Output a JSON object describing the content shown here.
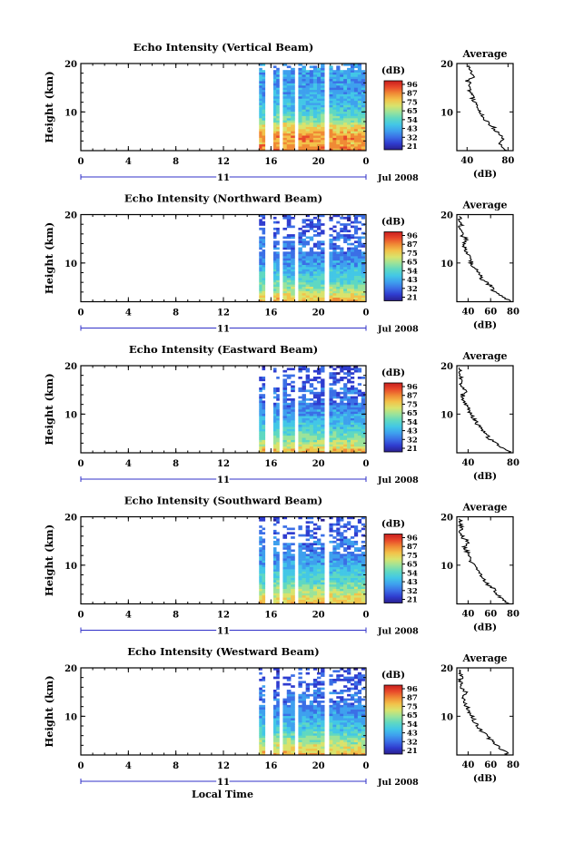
{
  "palette": [
    "#2a1f8f",
    "#2f3ccf",
    "#3b6fe6",
    "#3ea0ee",
    "#43c7e6",
    "#5fd8c2",
    "#9be39a",
    "#d9e36c",
    "#f2c24a",
    "#f08a35",
    "#e8482a",
    "#c81e1e"
  ],
  "colorbar": {
    "unit": "(dB)",
    "ticks": [
      "96",
      "87",
      "75",
      "65",
      "54",
      "43",
      "32",
      "21"
    ]
  },
  "x_axis": {
    "ticks": [
      "0",
      "4",
      "8",
      "12",
      "16",
      "20",
      "0"
    ],
    "day_label": "11",
    "month_label": "Jul 2008",
    "xlabel": "Local Time"
  },
  "y_axis": {
    "ylabel": "Height (km)",
    "ticks": [
      "20",
      "10"
    ]
  },
  "average_panel": {
    "title": "Average",
    "xlabel": "(dB)"
  },
  "panels": [
    {
      "title": "Echo Intensity (Vertical Beam)",
      "avg_xticks": [
        "40",
        "80"
      ],
      "avg_xlim": [
        30,
        85
      ]
    },
    {
      "title": "Echo Intensity (Northward Beam)",
      "avg_xticks": [
        "40",
        "60",
        "80"
      ],
      "avg_xlim": [
        30,
        80
      ]
    },
    {
      "title": "Echo Intensity (Eastward Beam)",
      "avg_xticks": [
        "40",
        "80"
      ],
      "avg_xlim": [
        30,
        80
      ]
    },
    {
      "title": "Echo Intensity (Southward Beam)",
      "avg_xticks": [
        "40",
        "60",
        "80"
      ],
      "avg_xlim": [
        30,
        80
      ]
    },
    {
      "title": "Echo Intensity (Westward Beam)",
      "avg_xticks": [
        "40",
        "60",
        "80"
      ],
      "avg_xlim": [
        30,
        80
      ]
    }
  ],
  "chart_data": [
    {
      "type": "heatmap",
      "beam": "Vertical",
      "x_range_hours": [
        0,
        24
      ],
      "y_range_km": [
        2,
        20
      ],
      "data_columns_hours": [
        [
          15.0,
          15.5
        ],
        [
          16.2,
          16.7
        ],
        [
          17.0,
          18.0
        ],
        [
          18.3,
          20.5
        ],
        [
          20.9,
          23.9
        ]
      ],
      "profile_db": [
        78,
        74,
        70,
        75,
        72,
        68,
        66,
        60,
        58,
        55,
        52,
        50,
        48,
        46,
        45,
        43,
        42,
        44,
        40,
        46,
        42,
        44,
        42
      ],
      "profile_heights_km": [
        2,
        2.8,
        3.6,
        4.4,
        5.2,
        6.0,
        6.8,
        7.6,
        8.4,
        9.2,
        10.0,
        10.8,
        11.6,
        12.4,
        13.2,
        14.0,
        14.8,
        15.6,
        16.4,
        17.2,
        18.0,
        18.8,
        19.6
      ],
      "clim": [
        21,
        96
      ]
    },
    {
      "type": "heatmap",
      "beam": "Northward",
      "x_range_hours": [
        0,
        24
      ],
      "y_range_km": [
        2,
        20
      ],
      "data_columns_hours": [
        [
          15.0,
          15.5
        ],
        [
          16.2,
          16.7
        ],
        [
          17.0,
          18.0
        ],
        [
          18.3,
          20.5
        ],
        [
          20.9,
          23.9
        ]
      ],
      "profile_db": [
        78,
        72,
        68,
        62,
        60,
        56,
        52,
        50,
        48,
        45,
        43,
        41,
        40,
        38,
        37,
        36,
        40,
        35,
        34,
        33,
        34,
        33,
        32
      ],
      "profile_heights_km": [
        2,
        2.8,
        3.6,
        4.4,
        5.2,
        6.0,
        6.8,
        7.6,
        8.4,
        9.2,
        10.0,
        10.8,
        11.6,
        12.4,
        13.2,
        14.0,
        14.8,
        15.6,
        16.4,
        17.2,
        18.0,
        18.8,
        19.6
      ],
      "clim": [
        21,
        96
      ]
    },
    {
      "type": "heatmap",
      "beam": "Eastward",
      "x_range_hours": [
        0,
        24
      ],
      "y_range_km": [
        2,
        20
      ],
      "data_columns_hours": [
        [
          15.0,
          15.5
        ],
        [
          16.2,
          16.7
        ],
        [
          17.0,
          18.0
        ],
        [
          18.3,
          20.5
        ],
        [
          20.9,
          23.9
        ]
      ],
      "profile_db": [
        77,
        72,
        66,
        62,
        58,
        55,
        52,
        49,
        47,
        45,
        43,
        41,
        39,
        37,
        36,
        35,
        38,
        34,
        33,
        34,
        33,
        32,
        32
      ],
      "profile_heights_km": [
        2,
        2.8,
        3.6,
        4.4,
        5.2,
        6.0,
        6.8,
        7.6,
        8.4,
        9.2,
        10.0,
        10.8,
        11.6,
        12.4,
        13.2,
        14.0,
        14.8,
        15.6,
        16.4,
        17.2,
        18.0,
        18.8,
        19.6
      ],
      "clim": [
        21,
        96
      ]
    },
    {
      "type": "heatmap",
      "beam": "Southward",
      "x_range_hours": [
        0,
        24
      ],
      "y_range_km": [
        2,
        20
      ],
      "data_columns_hours": [
        [
          15.0,
          15.5
        ],
        [
          16.2,
          16.7
        ],
        [
          17.0,
          18.0
        ],
        [
          18.3,
          20.5
        ],
        [
          20.9,
          23.9
        ]
      ],
      "profile_db": [
        76,
        72,
        68,
        64,
        62,
        58,
        54,
        52,
        50,
        47,
        45,
        43,
        42,
        40,
        38,
        37,
        40,
        36,
        34,
        33,
        34,
        33,
        32
      ],
      "profile_heights_km": [
        2,
        2.8,
        3.6,
        4.4,
        5.2,
        6.0,
        6.8,
        7.6,
        8.4,
        9.2,
        10.0,
        10.8,
        11.6,
        12.4,
        13.2,
        14.0,
        14.8,
        15.6,
        16.4,
        17.2,
        18.0,
        18.8,
        19.6
      ],
      "clim": [
        21,
        96
      ]
    },
    {
      "type": "heatmap",
      "beam": "Westward",
      "x_range_hours": [
        0,
        24
      ],
      "y_range_km": [
        2,
        20
      ],
      "data_columns_hours": [
        [
          15.0,
          15.5
        ],
        [
          16.2,
          16.7
        ],
        [
          17.0,
          18.0
        ],
        [
          18.3,
          20.5
        ],
        [
          20.9,
          23.9
        ]
      ],
      "profile_db": [
        76,
        72,
        68,
        64,
        60,
        56,
        53,
        50,
        48,
        45,
        43,
        41,
        40,
        38,
        37,
        36,
        39,
        35,
        34,
        33,
        34,
        33,
        32
      ],
      "profile_heights_km": [
        2,
        2.8,
        3.6,
        4.4,
        5.2,
        6.0,
        6.8,
        7.6,
        8.4,
        9.2,
        10.0,
        10.8,
        11.6,
        12.4,
        13.2,
        14.0,
        14.8,
        15.6,
        16.4,
        17.2,
        18.0,
        18.8,
        19.6
      ],
      "clim": [
        21,
        96
      ]
    }
  ]
}
